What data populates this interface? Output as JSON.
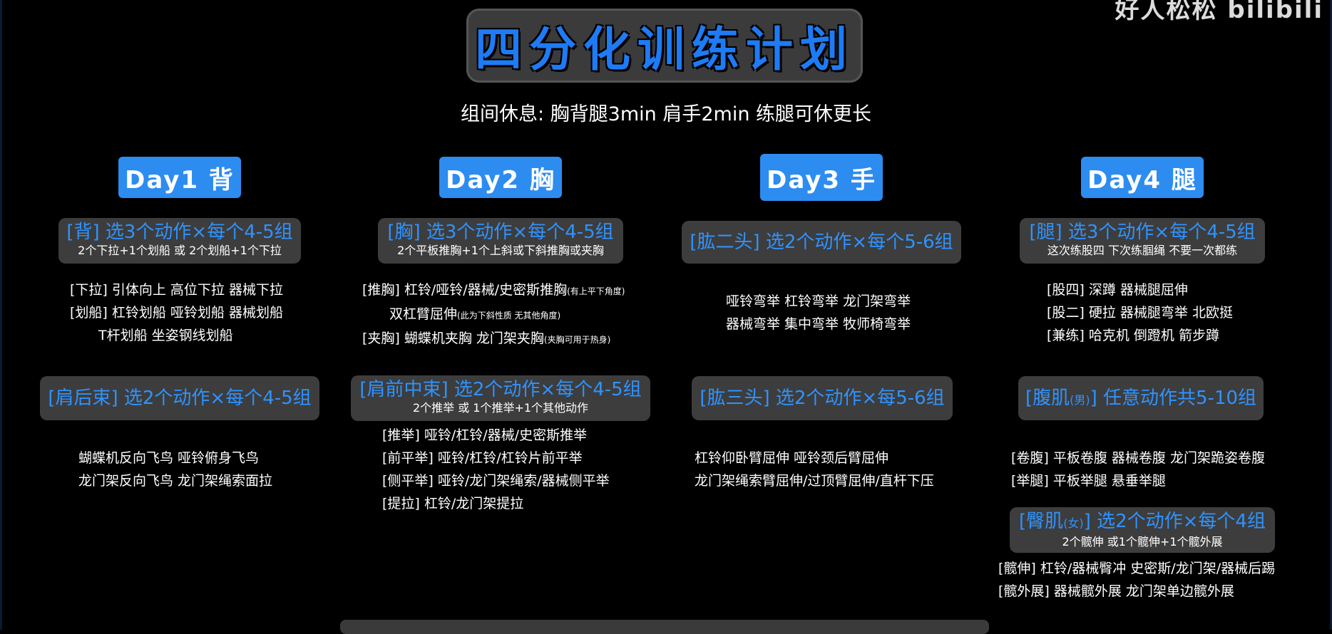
{
  "header": {
    "title": "四分化训练计划",
    "subtitle": "组间休息: 胸背腿3min  肩手2min  练腿可休更长",
    "watermark": "好人松松 bilibili"
  },
  "days": [
    {
      "label": "Day1 背"
    },
    {
      "label": "Day2 胸"
    },
    {
      "label": "Day3 手"
    },
    {
      "label": "Day4 腿"
    }
  ],
  "day1": {
    "sec1": {
      "title": "[背] 选3个动作×每个4-5组",
      "sub": "2个下拉+1个划船 或 2个划船+1个下拉"
    },
    "sec1_lines": [
      "[下拉] 引体向上 高位下拉 器械下拉",
      "[划船] 杠铃划船 哑铃划船 器械划船",
      "T杆划船  坐姿钢线划船"
    ],
    "sec2": {
      "title": "[肩后束] 选2个动作×每个4-5组"
    },
    "sec2_lines": [
      "蝴蝶机反向飞鸟 哑铃俯身飞鸟",
      "龙门架反向飞鸟 龙门架绳索面拉"
    ]
  },
  "day2": {
    "sec1": {
      "title": "[胸] 选3个动作×每个4-5组",
      "sub": "2个平板推胸+1个上斜或下斜推胸或夹胸"
    },
    "sec1_lines": [
      {
        "main": "[推胸] 杠铃/哑铃/器械/史密斯推胸",
        "note": "(有上平下角度)"
      },
      {
        "main": "双杠臂屈伸",
        "note": "(此为下斜性质 无其他角度)"
      },
      {
        "main": "[夹胸] 蝴蝶机夹胸 龙门架夹胸",
        "note": "(夹胸可用于热身)"
      }
    ],
    "sec2": {
      "title": "[肩前中束] 选2个动作×每个4-5组",
      "sub": "2个推举 或 1个推举+1个其他动作"
    },
    "sec2_lines": [
      "[推举] 哑铃/杠铃/器械/史密斯推举",
      "[前平举] 哑铃/杠铃/杠铃片前平举",
      "[侧平举] 哑铃/龙门架绳索/器械侧平举",
      "[提拉] 杠铃/龙门架提拉"
    ]
  },
  "day3": {
    "sec1": {
      "title": "[肱二头] 选2个动作×每个5-6组"
    },
    "sec1_lines": [
      "哑铃弯举 杠铃弯举 龙门架弯举",
      "器械弯举 集中弯举 牧师椅弯举"
    ],
    "sec2": {
      "title": "[肱三头] 选2个动作×每5-6组"
    },
    "sec2_lines": [
      "杠铃仰卧臂屈伸 哑铃颈后臂屈伸",
      "龙门架绳索臂屈伸/过顶臂屈伸/直杆下压"
    ]
  },
  "day4": {
    "sec1": {
      "title": "[腿] 选3个动作×每个4-5组",
      "sub": "这次练股四 下次练腘绳 不要一次都练"
    },
    "sec1_lines": [
      "[股四] 深蹲 器械腿屈伸",
      "[股二] 硬拉 器械腿弯举 北欧挺",
      "[兼练] 哈克机 倒蹬机 箭步蹲"
    ],
    "sec2": {
      "title_a": "[腹肌",
      "title_note": "(男)",
      "title_b": "] 任意动作共5-10组"
    },
    "sec2_lines": [
      "[卷腹] 平板卷腹 器械卷腹 龙门架跪姿卷腹",
      "[举腿] 平板举腿 悬垂举腿"
    ],
    "sec3": {
      "title_a": "[臀肌",
      "title_note": "(女)",
      "title_b": "] 选2个动作×每个4组",
      "sub": "2个髋伸 或1个髋伸+1个髋外展"
    },
    "sec3_lines": [
      "[髋伸] 杠铃/器械臀冲 史密斯/龙门架/器械后踢",
      "[髋外展] 器械髋外展 龙门架单边髋外展"
    ]
  },
  "colors": {
    "accent": "#2d8cf0",
    "heading_blue": "#2f93ff",
    "panel": "#3d3d3d",
    "background": "#000000"
  }
}
